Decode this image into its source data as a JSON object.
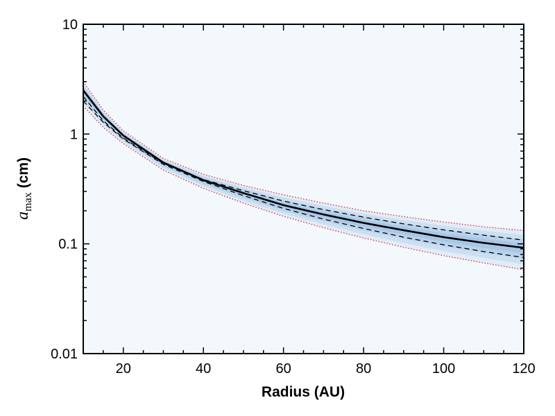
{
  "chart_data": {
    "type": "line",
    "title": "",
    "xlabel": "Radius (AU)",
    "ylabel": {
      "symbol": "a",
      "subscript": "max",
      "unit": "(cm)"
    },
    "xlim": [
      10,
      120
    ],
    "ylim": [
      0.01,
      10
    ],
    "yscale": "log",
    "grid": false,
    "xticks": [
      20,
      40,
      60,
      80,
      100,
      120
    ],
    "xtick_labels": [
      "20",
      "40",
      "60",
      "80",
      "100",
      "120"
    ],
    "yticks": [
      0.01,
      0.1,
      1,
      10
    ],
    "ytick_labels": [
      "0.01",
      "0.1",
      "1",
      "10"
    ],
    "x": [
      10,
      15,
      20,
      30,
      40,
      50,
      60,
      70,
      80,
      90,
      100,
      110,
      120
    ],
    "series": [
      {
        "style": "solid",
        "color": "#000000",
        "values": [
          2.5,
          1.45,
          0.97,
          0.55,
          0.38,
          0.29,
          0.225,
          0.185,
          0.155,
          0.133,
          0.115,
          0.102,
          0.092
        ]
      },
      {
        "style": "dashed",
        "color": "#000000",
        "values": [
          2.2,
          1.32,
          0.92,
          0.54,
          0.385,
          0.305,
          0.245,
          0.205,
          0.175,
          0.152,
          0.134,
          0.12,
          0.108
        ]
      },
      {
        "style": "dashed",
        "color": "#000000",
        "values": [
          2.0,
          1.28,
          0.9,
          0.53,
          0.37,
          0.275,
          0.21,
          0.168,
          0.138,
          0.115,
          0.098,
          0.085,
          0.075
        ]
      },
      {
        "style": "dotted",
        "color": "#e8262b",
        "values": [
          3.0,
          1.65,
          1.07,
          0.6,
          0.43,
          0.34,
          0.28,
          0.235,
          0.2,
          0.177,
          0.158,
          0.143,
          0.132
        ]
      },
      {
        "style": "dotted",
        "color": "#e8262b",
        "values": [
          1.8,
          1.15,
          0.82,
          0.47,
          0.32,
          0.235,
          0.178,
          0.14,
          0.113,
          0.093,
          0.078,
          0.067,
          0.058
        ]
      }
    ],
    "band": {
      "color": "#3f86c4",
      "lower_series": 4,
      "upper_series": 3
    },
    "colors": {
      "background": "#f3f8fd",
      "frame": "#000000"
    }
  }
}
